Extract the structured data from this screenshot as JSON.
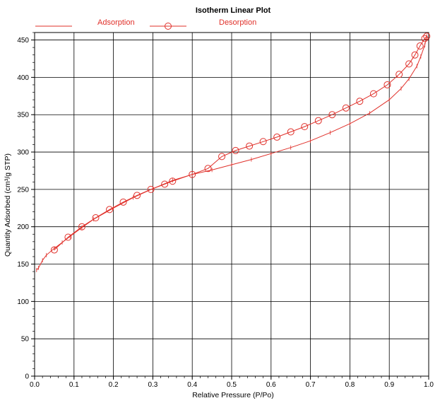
{
  "chart_data": {
    "type": "line",
    "title": "Isotherm Linear Plot",
    "xlabel": "Relative Pressure (P/Po)",
    "ylabel": "Quantity Adsorbed (cm³/g STP)",
    "xlim": [
      0,
      1.0
    ],
    "ylim": [
      0,
      460
    ],
    "xticks": [
      0.0,
      0.1,
      0.2,
      0.3,
      0.4,
      0.5,
      0.6,
      0.7,
      0.8,
      0.9,
      1.0
    ],
    "xtick_labels": [
      "0.0",
      "0.1",
      "0.2",
      "0.3",
      "0.4",
      "0.5",
      "0.6",
      "0.7",
      "0.8",
      "0.9",
      "1.0"
    ],
    "yticks": [
      0,
      50,
      100,
      150,
      200,
      250,
      300,
      350,
      400,
      450
    ],
    "ytick_labels": [
      "0",
      "50",
      "100",
      "150",
      "200",
      "250",
      "300",
      "350",
      "400",
      "450"
    ],
    "grid": true,
    "legend_position": "top",
    "color": "#e0302a",
    "series": [
      {
        "name": "Adsorption",
        "marker": "none",
        "x": [
          0.005,
          0.01,
          0.02,
          0.03,
          0.05,
          0.07,
          0.09,
          0.12,
          0.15,
          0.2,
          0.25,
          0.3,
          0.35,
          0.4,
          0.45,
          0.5,
          0.55,
          0.6,
          0.65,
          0.7,
          0.75,
          0.8,
          0.85,
          0.9,
          0.93,
          0.95,
          0.97,
          0.98,
          0.99,
          0.995
        ],
        "y": [
          142,
          145,
          155,
          162,
          171,
          179,
          187,
          199,
          210,
          225,
          239,
          251,
          262,
          270,
          276,
          283,
          290,
          298,
          306,
          315,
          326,
          338,
          352,
          370,
          385,
          398,
          415,
          428,
          443,
          455
        ]
      },
      {
        "name": "Desorption",
        "marker": "circle",
        "x": [
          0.05,
          0.085,
          0.12,
          0.155,
          0.19,
          0.225,
          0.26,
          0.295,
          0.33,
          0.35,
          0.4,
          0.44,
          0.475,
          0.51,
          0.545,
          0.58,
          0.615,
          0.65,
          0.685,
          0.72,
          0.755,
          0.79,
          0.825,
          0.86,
          0.895,
          0.925,
          0.95,
          0.965,
          0.978,
          0.99,
          0.995
        ],
        "y": [
          169,
          186,
          200,
          212,
          223,
          233,
          242,
          250,
          257,
          261,
          270,
          278,
          294,
          302,
          308,
          314,
          320,
          327,
          334,
          342,
          350,
          359,
          368,
          378,
          390,
          404,
          418,
          430,
          442,
          452,
          455
        ]
      }
    ]
  }
}
